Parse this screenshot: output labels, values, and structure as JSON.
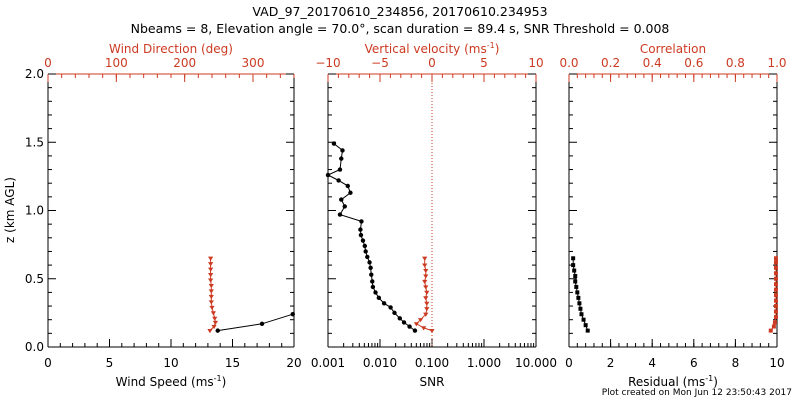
{
  "title_line1": "VAD_97_20170610_234856, 20170610.234953",
  "title_line2": "Nbeams = 8, Elevation angle = 70.0°, scan duration = 89.4 s, SNR Threshold = 0.008",
  "footer": "Plot created on Mon Jun 12 23:50:43 2017",
  "colors": {
    "axis": "#000000",
    "accent": "#cc3a22",
    "series_black": "#000000"
  },
  "chart_data": [
    {
      "type": "line",
      "ylabel": "z (km AGL)",
      "ylabel_parts": [],
      "ylim": [
        0,
        2.0
      ],
      "yticks": [
        0.0,
        0.5,
        1.0,
        1.5,
        2.0
      ],
      "ytick_labels": [
        "0.0",
        "0.5",
        "1.0",
        "1.5",
        "2.0"
      ],
      "xlabel": "Wind Speed (ms",
      "xlabel_sup": "-1",
      "xlabel_tail": ")",
      "xlim": [
        0,
        20
      ],
      "xticks": [
        0,
        5,
        10,
        15,
        20
      ],
      "xtick_labels": [
        "0",
        "5",
        "10",
        "15",
        "20"
      ],
      "top_label": "Wind Direction (deg)",
      "top_label_sup": "",
      "top_label_tail": "",
      "top_xlim": [
        0,
        360
      ],
      "top_xticks": [
        0,
        100,
        200,
        300
      ],
      "top_xtick_labels": [
        "0",
        "100",
        "200",
        "300"
      ],
      "series": [
        {
          "role": "bottom",
          "color": "black",
          "marker": "circle",
          "points": [
            [
              13.8,
              0.12
            ],
            [
              17.4,
              0.17
            ],
            [
              19.9,
              0.24
            ]
          ]
        },
        {
          "role": "top",
          "color": "red",
          "marker": "triangle",
          "points": [
            [
              237,
              0.12
            ],
            [
              243,
              0.15
            ],
            [
              245,
              0.18
            ],
            [
              244,
              0.21
            ],
            [
              242,
              0.25
            ],
            [
              240,
              0.29
            ],
            [
              239,
              0.33
            ],
            [
              239,
              0.37
            ],
            [
              239,
              0.41
            ],
            [
              239,
              0.45
            ],
            [
              238,
              0.49
            ],
            [
              238,
              0.53
            ],
            [
              238,
              0.57
            ],
            [
              238,
              0.61
            ],
            [
              238,
              0.65
            ]
          ]
        }
      ]
    },
    {
      "type": "line",
      "xscale": "log",
      "ylim": [
        0,
        2.0
      ],
      "xlabel": "SNR",
      "xlabel_sup": "",
      "xlabel_tail": "",
      "xlim": [
        0.001,
        10
      ],
      "xticks": [
        0.001,
        0.01,
        0.1,
        1,
        10
      ],
      "xtick_labels": [
        "0.001",
        "0.010",
        "0.100",
        "1.000",
        "10.000"
      ],
      "top_label": "Vertical velocity (ms",
      "top_label_sup": "-1",
      "top_label_tail": ")",
      "top_xlim": [
        -10,
        10
      ],
      "top_xticks": [
        -10,
        -5,
        0,
        5,
        10
      ],
      "top_xtick_labels": [
        "−10",
        "−5",
        "0",
        "5",
        "10"
      ],
      "reference_line": {
        "axis": "top",
        "value": 0,
        "style": "dotted"
      },
      "series": [
        {
          "role": "bottom",
          "color": "black",
          "marker": "circle",
          "points": [
            [
              0.047,
              0.12
            ],
            [
              0.037,
              0.15
            ],
            [
              0.029,
              0.18
            ],
            [
              0.024,
              0.21
            ],
            [
              0.019,
              0.25
            ],
            [
              0.016,
              0.29
            ],
            [
              0.012,
              0.32
            ],
            [
              0.0095,
              0.36
            ],
            [
              0.0082,
              0.4
            ],
            [
              0.0073,
              0.44
            ],
            [
              0.0071,
              0.48
            ],
            [
              0.0068,
              0.53
            ],
            [
              0.0066,
              0.58
            ],
            [
              0.0063,
              0.62
            ],
            [
              0.0057,
              0.66
            ],
            [
              0.0053,
              0.7
            ],
            [
              0.0051,
              0.74
            ],
            [
              0.0047,
              0.78
            ],
            [
              0.0043,
              0.82
            ],
            [
              0.0042,
              0.86
            ],
            [
              0.0044,
              0.92
            ],
            [
              0.0017,
              0.97
            ],
            [
              0.0021,
              1.03
            ],
            [
              0.0018,
              1.08
            ],
            [
              0.0027,
              1.13
            ],
            [
              0.0024,
              1.18
            ],
            [
              0.0016,
              1.22
            ],
            [
              0.001,
              1.26
            ],
            [
              0.0017,
              1.3
            ],
            [
              0.0018,
              1.38
            ],
            [
              0.0019,
              1.44
            ],
            [
              0.0013,
              1.49
            ]
          ]
        },
        {
          "role": "top",
          "color": "red",
          "marker": "triangle",
          "points": [
            [
              0.0,
              0.12
            ],
            [
              -0.8,
              0.14
            ],
            [
              -1.5,
              0.17
            ],
            [
              -1.1,
              0.2
            ],
            [
              -0.6,
              0.24
            ],
            [
              -0.5,
              0.28
            ],
            [
              -0.5,
              0.32
            ],
            [
              -0.6,
              0.36
            ],
            [
              -0.5,
              0.4
            ],
            [
              -0.6,
              0.44
            ],
            [
              -0.7,
              0.48
            ],
            [
              -0.6,
              0.52
            ],
            [
              -0.6,
              0.56
            ],
            [
              -0.7,
              0.6
            ],
            [
              -0.7,
              0.65
            ]
          ]
        }
      ]
    },
    {
      "type": "line",
      "ylim": [
        0,
        2.0
      ],
      "xlabel": "Residual (ms",
      "xlabel_sup": "-1",
      "xlabel_tail": ")",
      "xlim": [
        0,
        10
      ],
      "xticks": [
        0,
        2,
        4,
        6,
        8,
        10
      ],
      "xtick_labels": [
        "0",
        "2",
        "4",
        "6",
        "8",
        "10"
      ],
      "top_label": "Correlation",
      "top_label_sup": "",
      "top_label_tail": "",
      "top_xlim": [
        0,
        1.0
      ],
      "top_xticks": [
        0,
        0.2,
        0.4,
        0.6,
        0.8,
        1.0
      ],
      "top_xtick_labels": [
        "0.0",
        "0.2",
        "0.4",
        "0.6",
        "0.8",
        "1.0"
      ],
      "series": [
        {
          "role": "bottom",
          "color": "black",
          "marker": "square",
          "points": [
            [
              0.9,
              0.12
            ],
            [
              0.8,
              0.16
            ],
            [
              0.7,
              0.2
            ],
            [
              0.6,
              0.24
            ],
            [
              0.55,
              0.28
            ],
            [
              0.5,
              0.32
            ],
            [
              0.45,
              0.36
            ],
            [
              0.4,
              0.4
            ],
            [
              0.35,
              0.44
            ],
            [
              0.3,
              0.48
            ],
            [
              0.3,
              0.52
            ],
            [
              0.25,
              0.56
            ],
            [
              0.2,
              0.6
            ],
            [
              0.2,
              0.65
            ]
          ]
        },
        {
          "role": "top",
          "color": "red",
          "marker": "square",
          "points": [
            [
              0.97,
              0.12
            ],
            [
              0.985,
              0.15
            ],
            [
              0.99,
              0.18
            ],
            [
              0.995,
              0.22
            ],
            [
              0.995,
              0.26
            ],
            [
              0.995,
              0.3
            ],
            [
              0.995,
              0.34
            ],
            [
              0.995,
              0.38
            ],
            [
              0.995,
              0.42
            ],
            [
              0.995,
              0.46
            ],
            [
              0.995,
              0.5
            ],
            [
              0.995,
              0.54
            ],
            [
              0.995,
              0.58
            ],
            [
              0.995,
              0.62
            ],
            [
              0.995,
              0.65
            ]
          ]
        }
      ]
    }
  ]
}
